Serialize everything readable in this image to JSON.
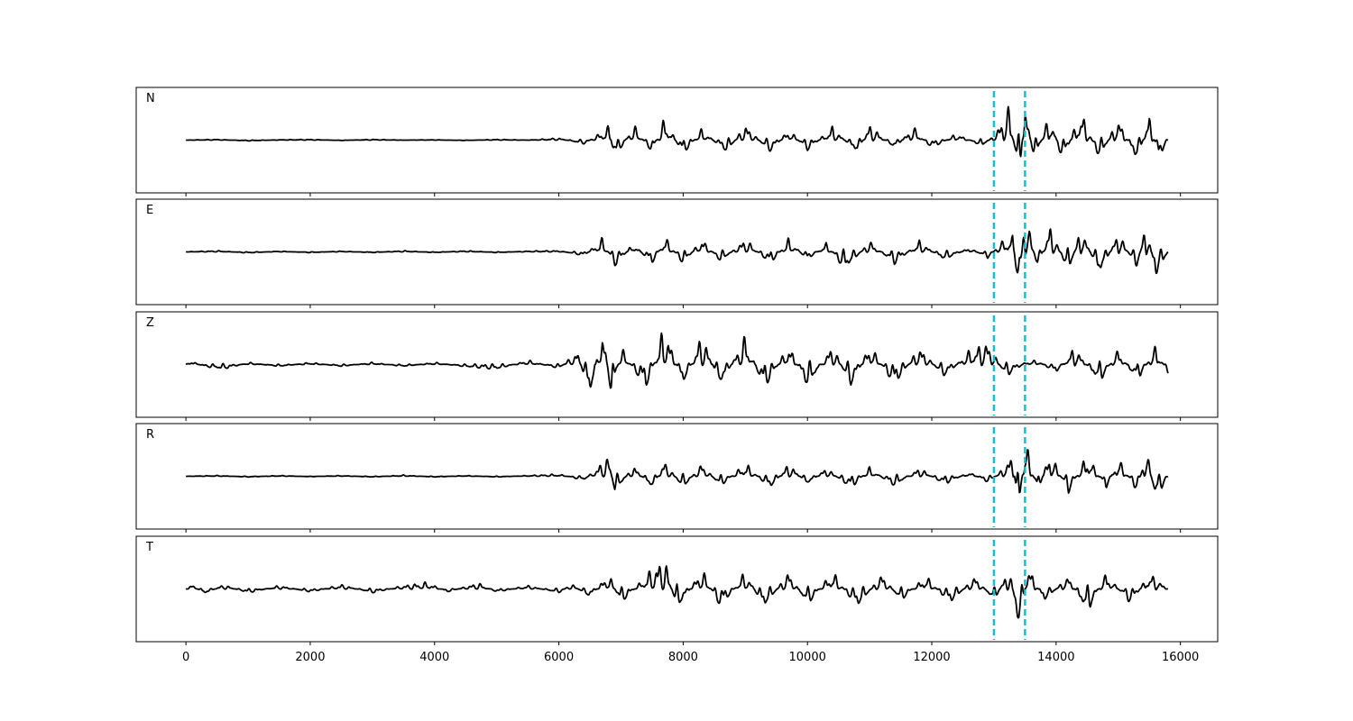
{
  "chart_data": {
    "type": "line",
    "title": "",
    "xlabel": "",
    "ylabel": "",
    "xlim": [
      -800,
      16600
    ],
    "xticks": [
      0,
      2000,
      4000,
      6000,
      8000,
      10000,
      12000,
      14000,
      16000
    ],
    "xtick_labels": [
      "0",
      "2000",
      "4000",
      "6000",
      "8000",
      "10000",
      "12000",
      "14000",
      "16000"
    ],
    "grid": false,
    "legend": "none",
    "colors": {
      "trace": "#000000",
      "marker": "#17becf",
      "frame": "#000000"
    },
    "markers": [
      {
        "x": 13000,
        "style": "dashed"
      },
      {
        "x": 13500,
        "style": "dashed"
      }
    ],
    "panels": [
      {
        "label": "N",
        "x_end": 15800,
        "series": [
          [
            0,
            0.0
          ],
          [
            500,
            0.02
          ],
          [
            1000,
            -0.02
          ],
          [
            1500,
            0.01
          ],
          [
            2000,
            0.02
          ],
          [
            2500,
            -0.01
          ],
          [
            3000,
            0.02
          ],
          [
            3500,
            0.0
          ],
          [
            4000,
            0.01
          ],
          [
            4500,
            -0.01
          ],
          [
            5000,
            0.02
          ],
          [
            5500,
            0.0
          ],
          [
            6000,
            0.05
          ],
          [
            6400,
            -0.1
          ],
          [
            6800,
            0.3
          ],
          [
            6900,
            -0.45
          ],
          [
            7200,
            0.35
          ],
          [
            7500,
            -0.3
          ],
          [
            7700,
            0.5
          ],
          [
            8000,
            -0.35
          ],
          [
            8300,
            0.25
          ],
          [
            8700,
            -0.3
          ],
          [
            9000,
            0.35
          ],
          [
            9400,
            -0.3
          ],
          [
            9700,
            0.25
          ],
          [
            10000,
            -0.25
          ],
          [
            10400,
            0.3
          ],
          [
            10800,
            -0.3
          ],
          [
            11000,
            0.35
          ],
          [
            11400,
            -0.2
          ],
          [
            11700,
            0.3
          ],
          [
            12000,
            -0.2
          ],
          [
            12400,
            0.15
          ],
          [
            12800,
            -0.15
          ],
          [
            13000,
            0.1
          ],
          [
            13250,
            0.75
          ],
          [
            13400,
            -1.0
          ],
          [
            13500,
            0.8
          ],
          [
            13650,
            -0.5
          ],
          [
            13900,
            0.6
          ],
          [
            14100,
            -0.5
          ],
          [
            14400,
            0.65
          ],
          [
            14700,
            -0.45
          ],
          [
            15000,
            0.5
          ],
          [
            15300,
            -0.5
          ],
          [
            15500,
            0.55
          ],
          [
            15650,
            -0.45
          ],
          [
            15800,
            0.0
          ]
        ]
      },
      {
        "label": "E",
        "x_end": 15800,
        "series": [
          [
            0,
            0.0
          ],
          [
            500,
            0.03
          ],
          [
            1000,
            -0.03
          ],
          [
            1500,
            0.02
          ],
          [
            2000,
            -0.02
          ],
          [
            2500,
            0.02
          ],
          [
            3000,
            -0.02
          ],
          [
            3500,
            0.03
          ],
          [
            4000,
            -0.02
          ],
          [
            4500,
            0.03
          ],
          [
            5000,
            -0.02
          ],
          [
            5500,
            0.02
          ],
          [
            6000,
            0.03
          ],
          [
            6400,
            -0.1
          ],
          [
            6700,
            0.3
          ],
          [
            6900,
            -0.35
          ],
          [
            7200,
            0.2
          ],
          [
            7500,
            -0.3
          ],
          [
            7700,
            0.35
          ],
          [
            8000,
            -0.3
          ],
          [
            8300,
            0.3
          ],
          [
            8600,
            -0.25
          ],
          [
            9000,
            0.3
          ],
          [
            9400,
            -0.3
          ],
          [
            9700,
            0.3
          ],
          [
            10000,
            -0.2
          ],
          [
            10300,
            0.2
          ],
          [
            10600,
            -0.45
          ],
          [
            11000,
            0.25
          ],
          [
            11400,
            -0.3
          ],
          [
            11800,
            0.25
          ],
          [
            12200,
            -0.2
          ],
          [
            12600,
            0.1
          ],
          [
            12900,
            -0.15
          ],
          [
            13100,
            0.2
          ],
          [
            13300,
            0.35
          ],
          [
            13400,
            -1.0
          ],
          [
            13500,
            0.95
          ],
          [
            13700,
            -0.4
          ],
          [
            13900,
            0.6
          ],
          [
            14200,
            -0.5
          ],
          [
            14400,
            0.55
          ],
          [
            14700,
            -0.55
          ],
          [
            15000,
            0.45
          ],
          [
            15300,
            -0.4
          ],
          [
            15450,
            0.7
          ],
          [
            15600,
            -0.6
          ],
          [
            15800,
            0.0
          ]
        ]
      },
      {
        "label": "Z",
        "x_end": 15800,
        "series": [
          [
            0,
            0.0
          ],
          [
            50,
            0.1
          ],
          [
            300,
            -0.05
          ],
          [
            600,
            -0.12
          ],
          [
            1000,
            0.05
          ],
          [
            1500,
            -0.05
          ],
          [
            2000,
            0.05
          ],
          [
            2500,
            -0.05
          ],
          [
            3000,
            0.05
          ],
          [
            3500,
            -0.05
          ],
          [
            4000,
            0.05
          ],
          [
            4500,
            -0.06
          ],
          [
            5000,
            -0.12
          ],
          [
            5500,
            0.1
          ],
          [
            6000,
            -0.1
          ],
          [
            6300,
            0.3
          ],
          [
            6500,
            -0.8
          ],
          [
            6700,
            0.9
          ],
          [
            6850,
            -0.85
          ],
          [
            7000,
            0.4
          ],
          [
            7400,
            -0.6
          ],
          [
            7700,
            0.9
          ],
          [
            8000,
            -0.5
          ],
          [
            8300,
            0.7
          ],
          [
            8600,
            -0.5
          ],
          [
            9000,
            0.65
          ],
          [
            9300,
            -0.6
          ],
          [
            9700,
            0.45
          ],
          [
            10000,
            -0.55
          ],
          [
            10400,
            0.45
          ],
          [
            10700,
            -0.55
          ],
          [
            11000,
            0.45
          ],
          [
            11400,
            -0.5
          ],
          [
            11800,
            0.4
          ],
          [
            12200,
            -0.3
          ],
          [
            12600,
            0.3
          ],
          [
            12900,
            0.5
          ],
          [
            13200,
            -0.3
          ],
          [
            13500,
            0.05
          ],
          [
            13700,
            0.1
          ],
          [
            14000,
            -0.2
          ],
          [
            14300,
            0.4
          ],
          [
            14700,
            -0.45
          ],
          [
            15000,
            0.35
          ],
          [
            15300,
            -0.4
          ],
          [
            15600,
            0.4
          ],
          [
            15800,
            -0.2
          ]
        ]
      },
      {
        "label": "R",
        "x_end": 15800,
        "series": [
          [
            0,
            0.0
          ],
          [
            500,
            0.02
          ],
          [
            1000,
            -0.02
          ],
          [
            1500,
            0.02
          ],
          [
            2000,
            -0.01
          ],
          [
            2500,
            0.02
          ],
          [
            3000,
            -0.02
          ],
          [
            3500,
            0.03
          ],
          [
            4000,
            -0.02
          ],
          [
            4500,
            0.02
          ],
          [
            5000,
            -0.02
          ],
          [
            5500,
            0.02
          ],
          [
            6000,
            0.05
          ],
          [
            6400,
            -0.1
          ],
          [
            6800,
            0.45
          ],
          [
            6900,
            -0.4
          ],
          [
            7200,
            0.25
          ],
          [
            7500,
            -0.3
          ],
          [
            7700,
            0.35
          ],
          [
            8000,
            -0.3
          ],
          [
            8300,
            0.3
          ],
          [
            8600,
            -0.25
          ],
          [
            9000,
            0.3
          ],
          [
            9400,
            -0.3
          ],
          [
            9700,
            0.3
          ],
          [
            10000,
            -0.2
          ],
          [
            10300,
            0.2
          ],
          [
            10700,
            -0.3
          ],
          [
            11000,
            0.2
          ],
          [
            11400,
            -0.25
          ],
          [
            11800,
            0.2
          ],
          [
            12200,
            -0.2
          ],
          [
            12600,
            0.1
          ],
          [
            12900,
            -0.15
          ],
          [
            13100,
            0.1
          ],
          [
            13300,
            0.5
          ],
          [
            13400,
            -1.0
          ],
          [
            13500,
            0.85
          ],
          [
            13700,
            -0.4
          ],
          [
            13900,
            0.55
          ],
          [
            14200,
            -0.4
          ],
          [
            14500,
            0.5
          ],
          [
            14800,
            -0.3
          ],
          [
            15000,
            0.4
          ],
          [
            15300,
            -0.35
          ],
          [
            15450,
            0.65
          ],
          [
            15600,
            -0.55
          ],
          [
            15800,
            0.0
          ]
        ]
      },
      {
        "label": "T",
        "x_end": 15800,
        "series": [
          [
            0,
            0.0
          ],
          [
            100,
            0.1
          ],
          [
            300,
            -0.12
          ],
          [
            600,
            0.1
          ],
          [
            1000,
            -0.1
          ],
          [
            1500,
            0.08
          ],
          [
            2000,
            -0.08
          ],
          [
            2500,
            0.1
          ],
          [
            3000,
            -0.1
          ],
          [
            3500,
            0.08
          ],
          [
            3900,
            0.15
          ],
          [
            4200,
            -0.08
          ],
          [
            4700,
            0.14
          ],
          [
            5000,
            -0.08
          ],
          [
            5500,
            0.08
          ],
          [
            6000,
            -0.1
          ],
          [
            6200,
            0.12
          ],
          [
            6500,
            -0.2
          ],
          [
            6800,
            0.35
          ],
          [
            7000,
            -0.35
          ],
          [
            7400,
            0.3
          ],
          [
            7700,
            0.7
          ],
          [
            7900,
            -0.5
          ],
          [
            8300,
            0.45
          ],
          [
            8600,
            -0.45
          ],
          [
            9000,
            0.4
          ],
          [
            9300,
            -0.45
          ],
          [
            9700,
            0.4
          ],
          [
            10000,
            -0.4
          ],
          [
            10400,
            0.4
          ],
          [
            10800,
            -0.45
          ],
          [
            11200,
            0.35
          ],
          [
            11500,
            -0.3
          ],
          [
            11900,
            0.3
          ],
          [
            12300,
            -0.35
          ],
          [
            12700,
            0.3
          ],
          [
            13000,
            -0.3
          ],
          [
            13250,
            0.5
          ],
          [
            13400,
            -1.0
          ],
          [
            13550,
            0.55
          ],
          [
            13800,
            -0.3
          ],
          [
            14200,
            0.3
          ],
          [
            14500,
            -0.6
          ],
          [
            14800,
            0.35
          ],
          [
            15200,
            -0.35
          ],
          [
            15500,
            0.35
          ],
          [
            15800,
            0.0
          ]
        ]
      }
    ]
  }
}
